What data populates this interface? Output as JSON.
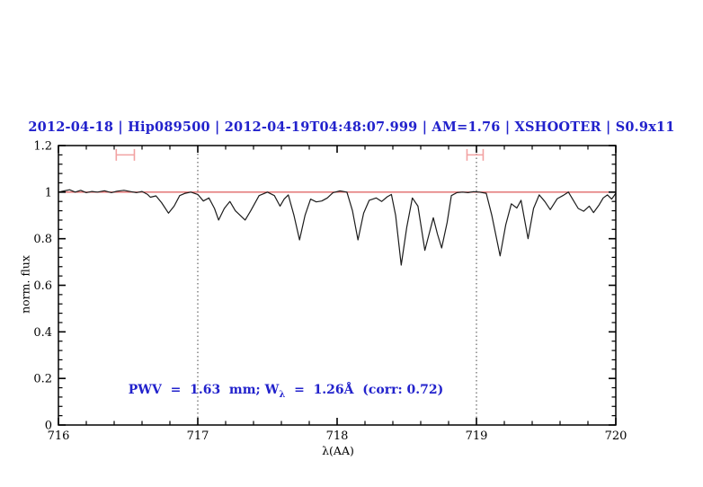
{
  "title": {
    "text": "2012-04-18 | Hip089500 | 2012-04-19T04:48:07.999 | AM=1.76 | XSHOOTER | S0.9x11",
    "color": "#2222cc"
  },
  "annotation": {
    "pre": "PWV  =  1.63  mm; W",
    "sub": "λ",
    "post": "  =  1.26Å  (corr: 0.72)",
    "color": "#2222cc"
  },
  "axes": {
    "xlabel": "λ(AA)",
    "ylabel": "norm. flux"
  },
  "chart_data": {
    "type": "line",
    "title": "2012-04-18 | Hip089500 | 2012-04-19T04:48:07.999 | AM=1.76 | XSHOOTER | S0.9x11",
    "xlabel": "λ(AA)",
    "ylabel": "norm. flux",
    "xlim": [
      716,
      720
    ],
    "ylim": [
      0,
      1.2
    ],
    "grid": "off",
    "x_major_ticks": [
      716,
      717,
      718,
      719,
      720
    ],
    "x_tick_labels": [
      "716",
      "717",
      "718",
      "719",
      "720"
    ],
    "x_minor_step": 0.2,
    "y_major_ticks": [
      0,
      0.2,
      0.4,
      0.6,
      0.8,
      1,
      1.2
    ],
    "y_tick_labels": [
      "0",
      "0.2",
      "0.4",
      "0.6",
      "0.8",
      "1",
      "1.2"
    ],
    "y_minor_step": 0.04,
    "dotted_vlines_x": [
      717,
      719
    ],
    "continuum_line": {
      "y": 1.0,
      "color": "#e06a6a"
    },
    "markers": [
      {
        "name": "band-marker-left",
        "x_center": 716.48,
        "x_half_width": 0.065,
        "y": 1.16,
        "cap_half_height": 0.025,
        "color": "#f2a2a2"
      },
      {
        "name": "band-marker-right",
        "x_center": 718.99,
        "x_half_width": 0.058,
        "y": 1.16,
        "cap_half_height": 0.025,
        "color": "#f2a2a2"
      }
    ],
    "annotation_text": "PWV = 1.63 mm; W_λ = 1.26Å (corr: 0.72)",
    "series": [
      {
        "name": "telluric-spectrum",
        "color": "#1c1c1c",
        "x": [
          716.0,
          716.04,
          716.08,
          716.12,
          716.16,
          716.2,
          716.24,
          716.28,
          716.33,
          716.38,
          716.42,
          716.47,
          716.52,
          716.56,
          716.6,
          716.64,
          716.66,
          716.7,
          716.74,
          716.79,
          716.83,
          716.87,
          716.91,
          716.95,
          717.0,
          717.04,
          717.08,
          717.12,
          717.15,
          717.19,
          717.23,
          717.27,
          717.34,
          717.38,
          717.44,
          717.5,
          717.55,
          717.59,
          717.62,
          717.65,
          717.69,
          717.73,
          717.77,
          717.81,
          717.85,
          717.89,
          717.93,
          717.97,
          718.02,
          718.07,
          718.11,
          718.15,
          718.19,
          718.23,
          718.28,
          718.32,
          718.36,
          718.39,
          718.42,
          718.46,
          718.5,
          718.54,
          718.58,
          718.63,
          718.66,
          718.69,
          718.72,
          718.75,
          718.79,
          718.82,
          718.86,
          718.9,
          718.94,
          718.98,
          719.02,
          719.07,
          719.11,
          719.17,
          719.21,
          719.25,
          719.29,
          719.32,
          719.37,
          719.41,
          719.45,
          719.49,
          719.53,
          719.58,
          719.62,
          719.66,
          719.7,
          719.73,
          719.77,
          719.81,
          719.84,
          719.88,
          719.91,
          719.94,
          719.97,
          720.0
        ],
        "y": [
          1.0,
          1.005,
          1.01,
          1.0,
          1.008,
          0.998,
          1.003,
          1.0,
          1.006,
          0.998,
          1.004,
          1.008,
          1.002,
          0.998,
          1.003,
          0.99,
          0.978,
          0.984,
          0.955,
          0.91,
          0.94,
          0.985,
          0.995,
          1.0,
          0.99,
          0.962,
          0.975,
          0.93,
          0.88,
          0.93,
          0.96,
          0.92,
          0.88,
          0.92,
          0.985,
          1.0,
          0.985,
          0.94,
          0.97,
          0.988,
          0.9,
          0.795,
          0.9,
          0.97,
          0.958,
          0.962,
          0.975,
          0.998,
          1.005,
          1.0,
          0.92,
          0.795,
          0.91,
          0.965,
          0.975,
          0.96,
          0.98,
          0.99,
          0.9,
          0.687,
          0.85,
          0.975,
          0.94,
          0.75,
          0.82,
          0.89,
          0.82,
          0.76,
          0.87,
          0.985,
          0.998,
          1.0,
          0.998,
          1.002,
          1.0,
          0.995,
          0.9,
          0.726,
          0.86,
          0.95,
          0.932,
          0.965,
          0.8,
          0.93,
          0.988,
          0.96,
          0.925,
          0.972,
          0.985,
          1.0,
          0.96,
          0.93,
          0.918,
          0.94,
          0.912,
          0.945,
          0.975,
          0.988,
          0.97,
          0.995
        ]
      }
    ]
  },
  "colors": {
    "title_blue": "#2222cc",
    "continuum_red": "#e06a6a",
    "marker_pink": "#f2a2a2",
    "spectrum_black": "#1c1c1c",
    "dotted_gray": "#555555"
  }
}
